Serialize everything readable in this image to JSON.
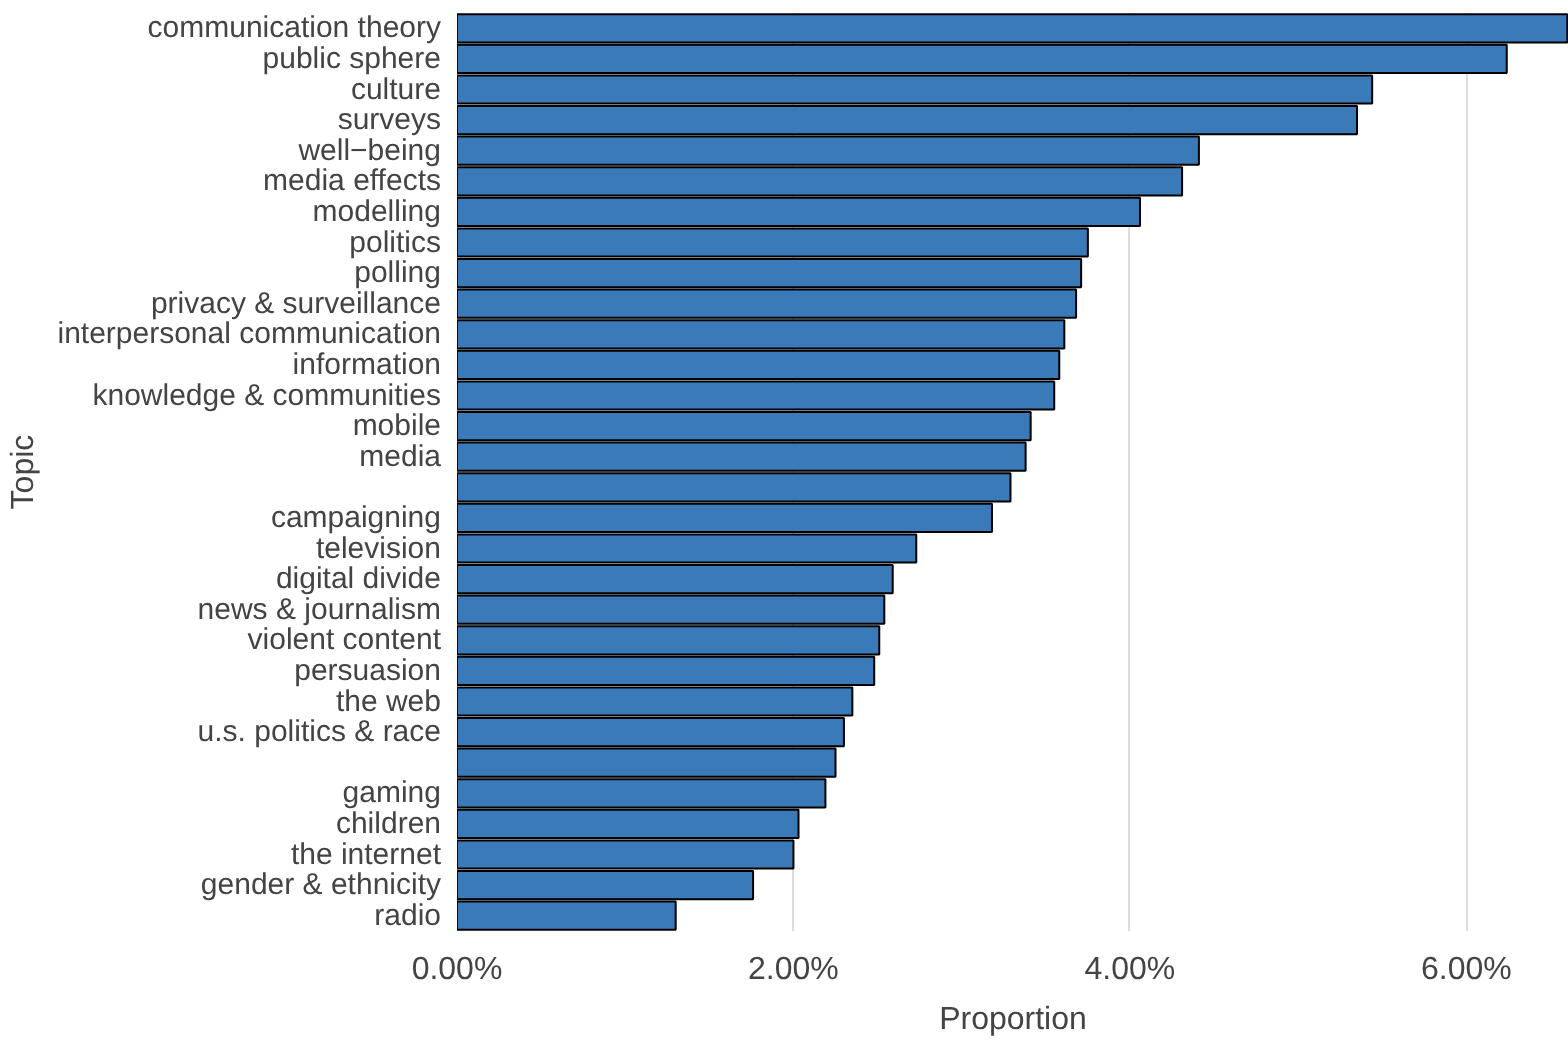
{
  "chart_data": {
    "type": "bar",
    "orientation": "horizontal",
    "xlabel": "Proportion",
    "ylabel": "Topic",
    "categories": [
      "communication theory",
      "public sphere",
      "culture",
      "surveys",
      "well−being",
      "media effects",
      "modelling",
      "politics",
      "polling",
      "privacy & surveillance",
      "interpersonal communication",
      "information",
      "knowledge & communities",
      "mobile",
      "media",
      null,
      "campaigning",
      "television",
      "digital divide",
      "news & journalism",
      "violent content",
      "persuasion",
      "the web",
      "u.s. politics & race",
      null,
      "gaming",
      "children",
      "the internet",
      "gender & ethnicity",
      "radio"
    ],
    "values": [
      6.6,
      6.24,
      5.44,
      5.35,
      4.41,
      4.31,
      4.06,
      3.75,
      3.71,
      3.68,
      3.61,
      3.58,
      3.55,
      3.41,
      3.38,
      3.29,
      3.18,
      2.73,
      2.59,
      2.54,
      2.51,
      2.48,
      2.35,
      2.3,
      2.25,
      2.19,
      2.03,
      2.0,
      1.76,
      1.3
    ],
    "color": "#3a7ab8",
    "xlim": [
      0,
      6.61
    ],
    "xticks": [
      {
        "value": 0,
        "label": "0.00%"
      },
      {
        "value": 2,
        "label": "2.00%"
      },
      {
        "value": 4,
        "label": "4.00%"
      },
      {
        "value": 6,
        "label": "6.00%"
      }
    ],
    "grid": "x"
  }
}
